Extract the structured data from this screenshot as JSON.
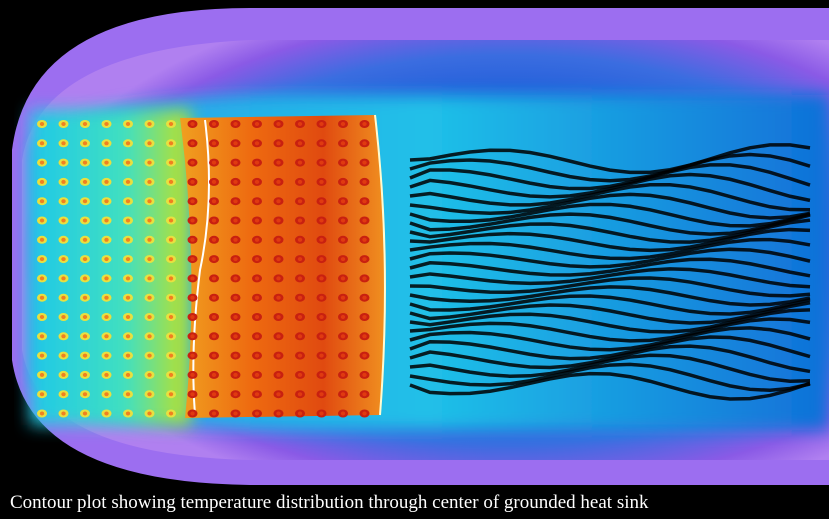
{
  "caption": "Contour plot showing temperature distribution through center of grounded heat sink"
}
